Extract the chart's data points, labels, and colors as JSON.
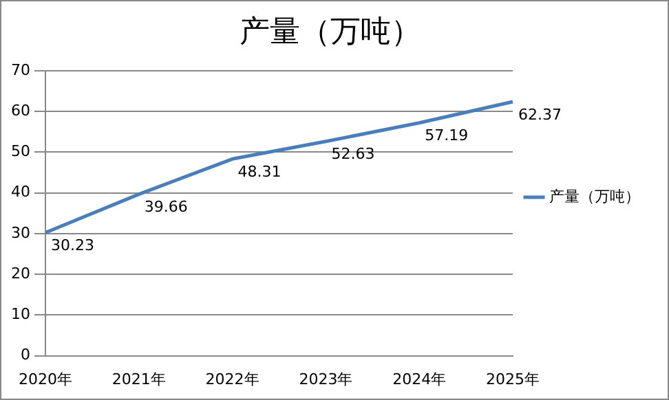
{
  "chart_data": {
    "type": "line",
    "title": "产量（万吨）",
    "categories": [
      "2020年",
      "2021年",
      "2022年",
      "2023年",
      "2024年",
      "2025年"
    ],
    "series": [
      {
        "name": "产量（万吨）",
        "color": "#4a7ebb",
        "values": [
          30.23,
          39.66,
          48.31,
          52.63,
          57.19,
          62.37
        ]
      }
    ],
    "ylim": [
      0,
      70
    ],
    "yticks": [
      0,
      10,
      20,
      30,
      40,
      50,
      60,
      70
    ],
    "grid": "y",
    "legend": "right",
    "marker": "none",
    "line_style": "solid",
    "data_labels": true
  }
}
